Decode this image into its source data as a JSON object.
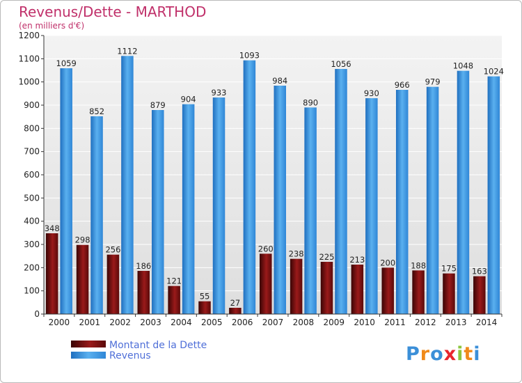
{
  "chart_data": {
    "type": "bar",
    "title": "Revenus/Dette - MARTHOD",
    "subtitle": "(en milliers d'€)",
    "categories": [
      "2000",
      "2001",
      "2002",
      "2003",
      "2004",
      "2005",
      "2006",
      "2007",
      "2008",
      "2009",
      "2010",
      "2011",
      "2012",
      "2013",
      "2014"
    ],
    "series": [
      {
        "name": "Montant de la Dette",
        "values": [
          348,
          298,
          256,
          186,
          121,
          55,
          27,
          260,
          238,
          225,
          213,
          200,
          188,
          175,
          163
        ],
        "color": "#7a0e0e"
      },
      {
        "name": "Revenus",
        "values": [
          1059,
          852,
          1112,
          879,
          904,
          933,
          1093,
          984,
          890,
          1056,
          930,
          966,
          979,
          1048,
          1024
        ],
        "color": "#3f9ae0"
      }
    ],
    "ylim": [
      0,
      1200
    ],
    "yticks": [
      0,
      100,
      200,
      300,
      400,
      500,
      600,
      700,
      800,
      900,
      1000,
      1100,
      1200
    ],
    "grid": true,
    "legend_position": "bottom-left"
  },
  "logo": {
    "text": "Proxiti"
  }
}
